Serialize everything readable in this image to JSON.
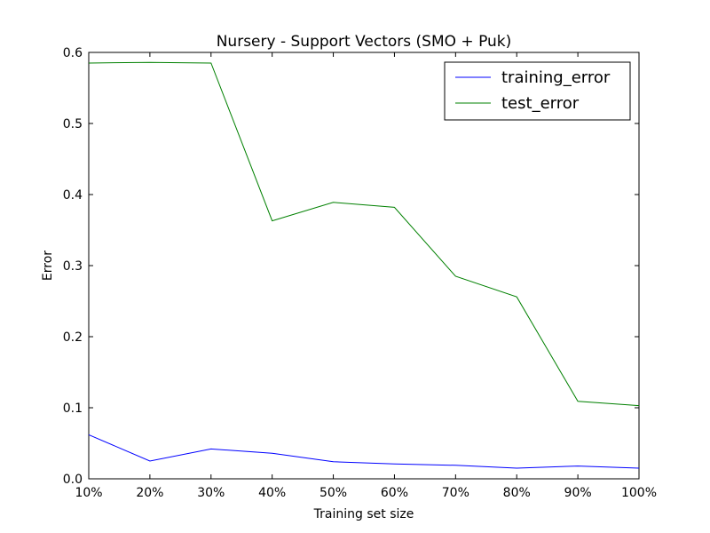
{
  "chart_data": {
    "type": "line",
    "title": "Nursery - Support Vectors (SMO + Puk)",
    "xlabel": "Training set size",
    "ylabel": "Error",
    "categories": [
      "10%",
      "20%",
      "30%",
      "40%",
      "50%",
      "60%",
      "70%",
      "80%",
      "90%",
      "100%"
    ],
    "x": [
      10,
      20,
      30,
      40,
      50,
      60,
      70,
      80,
      90,
      100
    ],
    "xlim": [
      10,
      100
    ],
    "ylim": [
      0.0,
      0.6
    ],
    "yticks": [
      "0.0",
      "0.1",
      "0.2",
      "0.3",
      "0.4",
      "0.5",
      "0.6"
    ],
    "grid": false,
    "legend_position": "top-right",
    "series": [
      {
        "name": "training_error",
        "color": "#0000ff",
        "values": [
          0.062,
          0.025,
          0.042,
          0.036,
          0.024,
          0.021,
          0.019,
          0.015,
          0.018,
          0.015
        ]
      },
      {
        "name": "test_error",
        "color": "#008000",
        "values": [
          0.585,
          0.586,
          0.585,
          0.363,
          0.389,
          0.382,
          0.285,
          0.256,
          0.109,
          0.103
        ]
      }
    ]
  }
}
